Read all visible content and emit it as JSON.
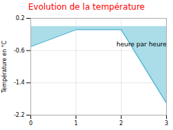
{
  "chart_data": {
    "type": "area",
    "title": "Evolution de la température",
    "ylabel": "Température en °C",
    "x": [
      0,
      1,
      2,
      3
    ],
    "values": [
      -0.5,
      -0.08,
      -0.08,
      -1.9
    ],
    "colors": [
      "#aadde8",
      "#5bb8d4"
    ],
    "xlim": [
      0,
      3
    ],
    "ylim": [
      -2.2,
      0.2
    ],
    "xticks": [
      0,
      1,
      2,
      3
    ],
    "yticks": [
      -2.2,
      -1.4,
      -0.6,
      0.2
    ],
    "grid": true,
    "annotations": [
      {
        "text": "heure par heure",
        "x": 2.45,
        "y": -0.38
      }
    ]
  }
}
